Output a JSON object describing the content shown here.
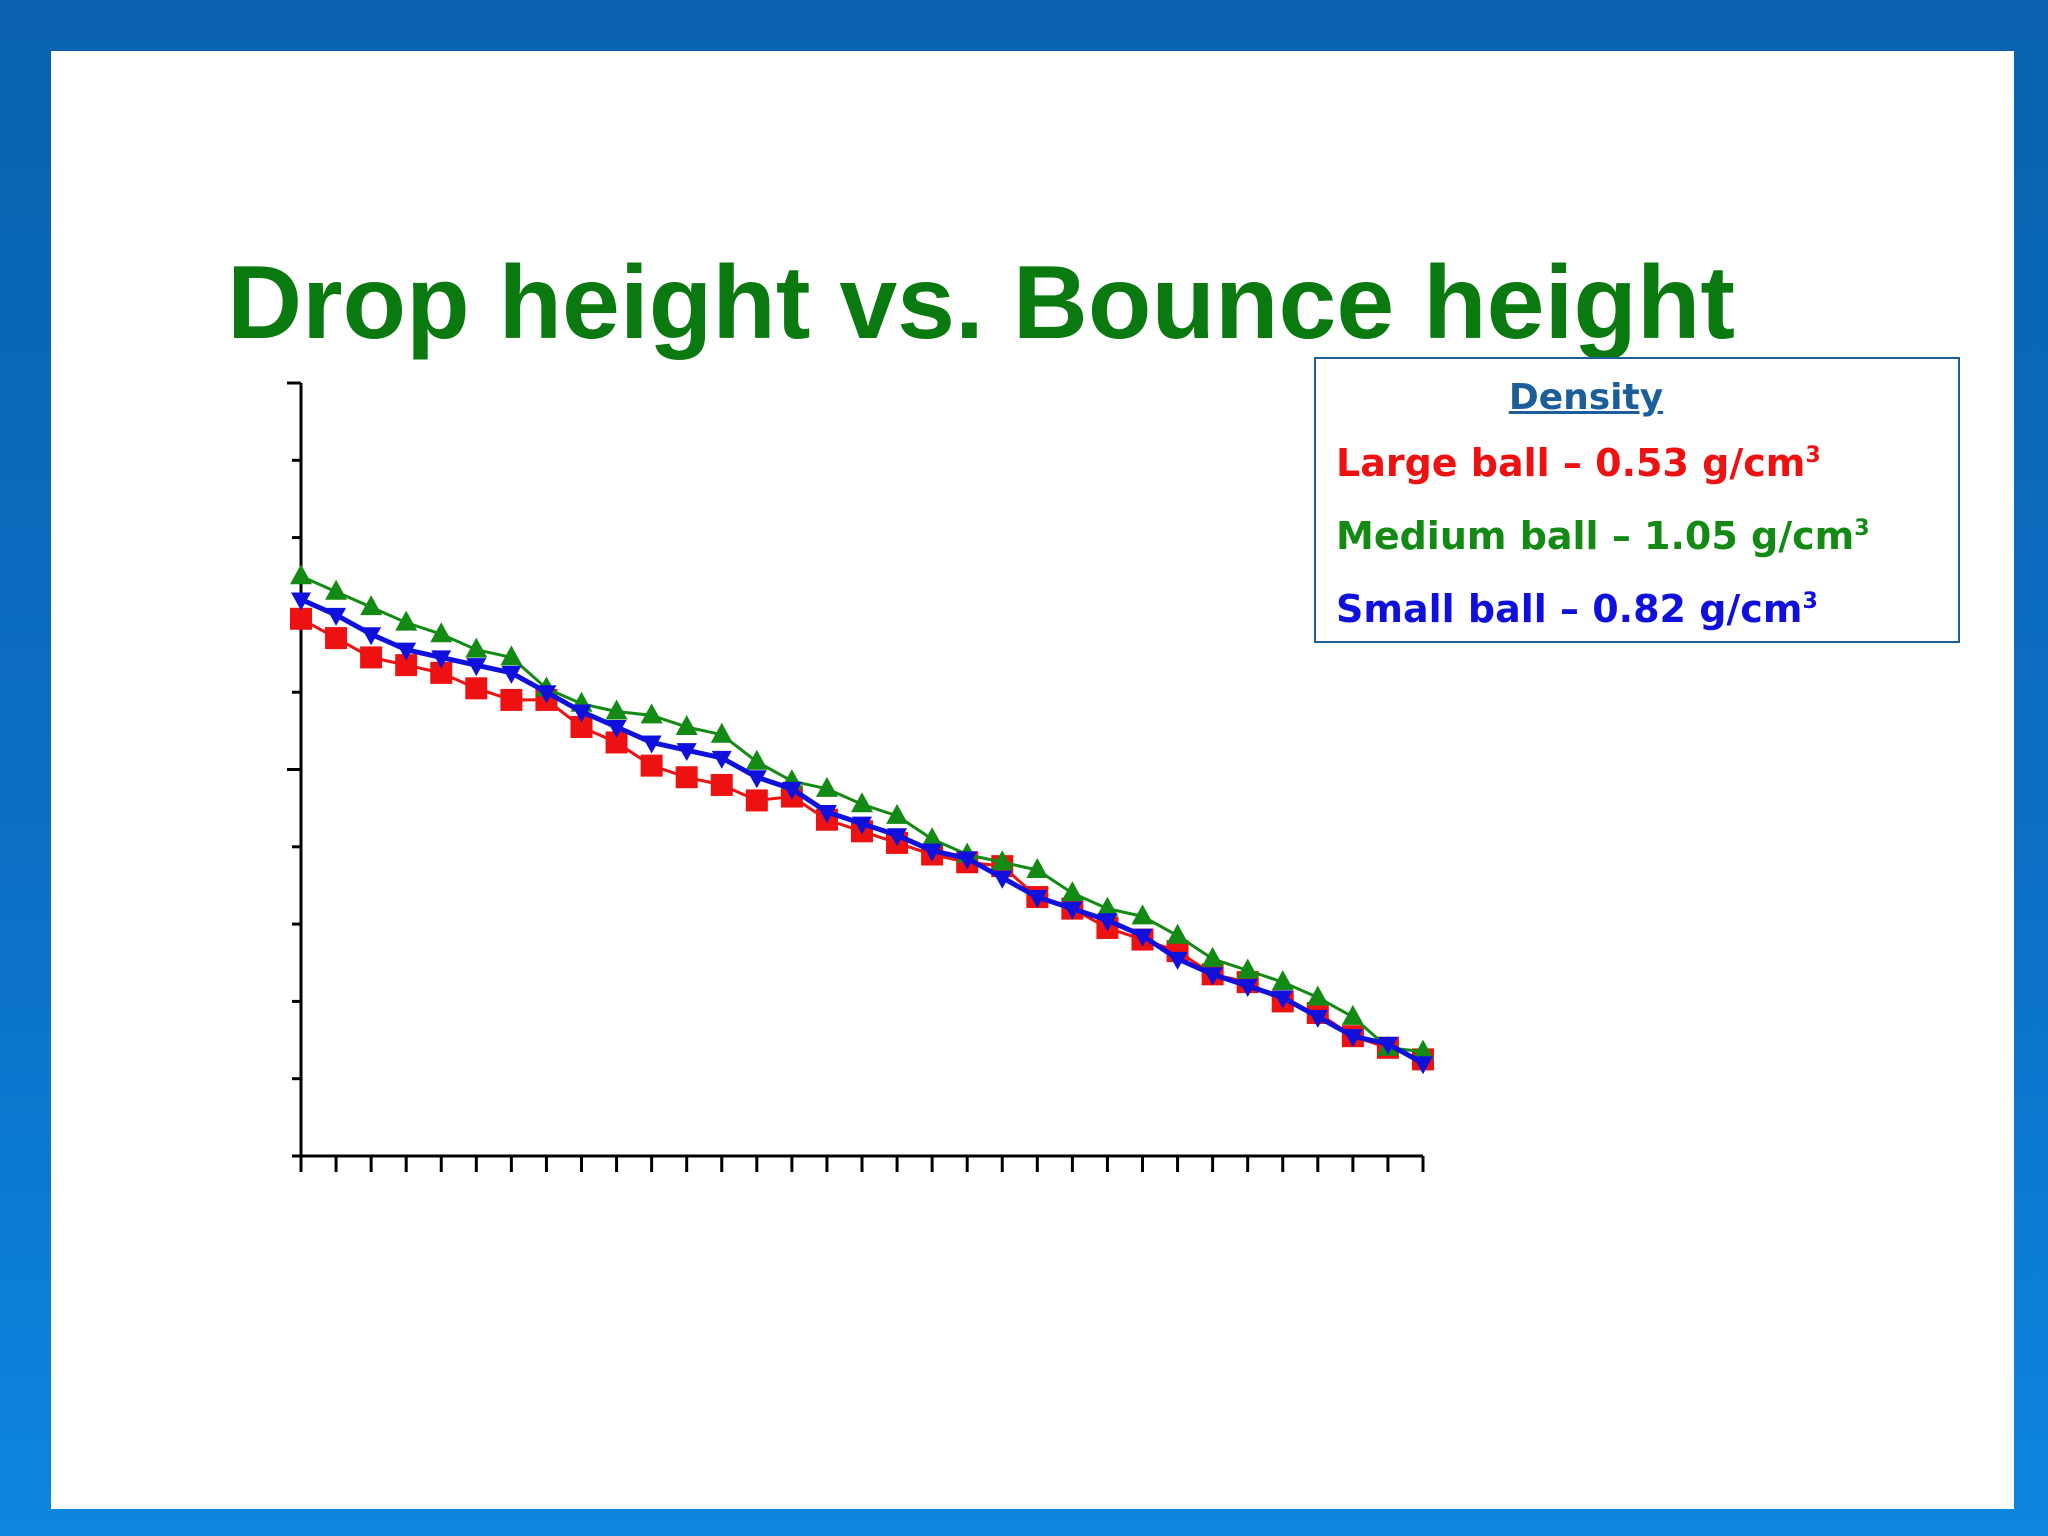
{
  "colors": {
    "title": "#0a7a10",
    "legend_title": "#1b5e9a",
    "large": "#ee1111",
    "medium": "#138a13",
    "small": "#1010dd",
    "axis": "#000000"
  },
  "legend": {
    "title": "Density",
    "entries": [
      {
        "key": "large",
        "text": "Large ball – 0.53 g/cm",
        "sup": "3"
      },
      {
        "key": "medium",
        "text": "Medium ball – 1.05 g/cm",
        "sup": "3"
      },
      {
        "key": "small",
        "text": "Small ball – 0.82 g/cm",
        "sup": "3"
      }
    ]
  },
  "chart_data": {
    "type": "line",
    "title": "Drop height vs. Bounce height",
    "xlabel": "",
    "ylabel": "",
    "xlim": [
      0,
      32
    ],
    "ylim": [
      0,
      10
    ],
    "x_ticks": 32,
    "y_ticks": 10,
    "grid": false,
    "series": [
      {
        "key": "large",
        "marker": "square",
        "x": [
          0,
          1,
          2,
          3,
          4,
          5,
          6,
          7,
          8,
          9,
          10,
          11,
          12,
          13,
          14,
          15,
          16,
          17,
          18,
          19,
          20,
          21,
          22,
          23,
          24,
          25,
          26,
          27,
          28,
          29,
          30,
          31,
          32
        ],
        "values": [
          6.95,
          6.7,
          6.45,
          6.35,
          6.25,
          6.05,
          5.9,
          5.9,
          5.55,
          5.35,
          5.05,
          4.9,
          4.8,
          4.6,
          4.65,
          4.35,
          4.2,
          4.05,
          3.9,
          3.8,
          3.75,
          3.35,
          3.2,
          2.95,
          2.8,
          2.65,
          2.35,
          2.25,
          2.0,
          1.85,
          1.55,
          1.4,
          1.25
        ]
      },
      {
        "key": "medium",
        "marker": "triangle-up",
        "x": [
          0,
          1,
          2,
          3,
          4,
          5,
          6,
          7,
          8,
          9,
          10,
          11,
          12,
          13,
          14,
          15,
          16,
          17,
          18,
          19,
          20,
          21,
          22,
          23,
          24,
          25,
          26,
          27,
          28,
          29,
          30,
          31,
          32
        ],
        "values": [
          7.5,
          7.3,
          7.1,
          6.9,
          6.75,
          6.55,
          6.45,
          6.05,
          5.85,
          5.75,
          5.7,
          5.55,
          5.45,
          5.1,
          4.85,
          4.75,
          4.55,
          4.4,
          4.1,
          3.9,
          3.8,
          3.7,
          3.4,
          3.2,
          3.1,
          2.85,
          2.55,
          2.4,
          2.25,
          2.05,
          1.8,
          1.4,
          1.35
        ]
      },
      {
        "key": "small",
        "marker": "triangle-down",
        "x": [
          0,
          1,
          2,
          3,
          4,
          5,
          6,
          7,
          8,
          9,
          10,
          11,
          12,
          13,
          14,
          15,
          16,
          17,
          18,
          19,
          20,
          21,
          22,
          23,
          24,
          25,
          26,
          27,
          28,
          29,
          30,
          31,
          32
        ],
        "values": [
          7.2,
          7.0,
          6.75,
          6.55,
          6.45,
          6.35,
          6.25,
          6.0,
          5.75,
          5.55,
          5.35,
          5.25,
          5.15,
          4.9,
          4.75,
          4.45,
          4.3,
          4.15,
          3.95,
          3.85,
          3.6,
          3.35,
          3.2,
          3.05,
          2.85,
          2.55,
          2.35,
          2.2,
          2.05,
          1.8,
          1.55,
          1.45,
          1.2
        ]
      }
    ]
  }
}
